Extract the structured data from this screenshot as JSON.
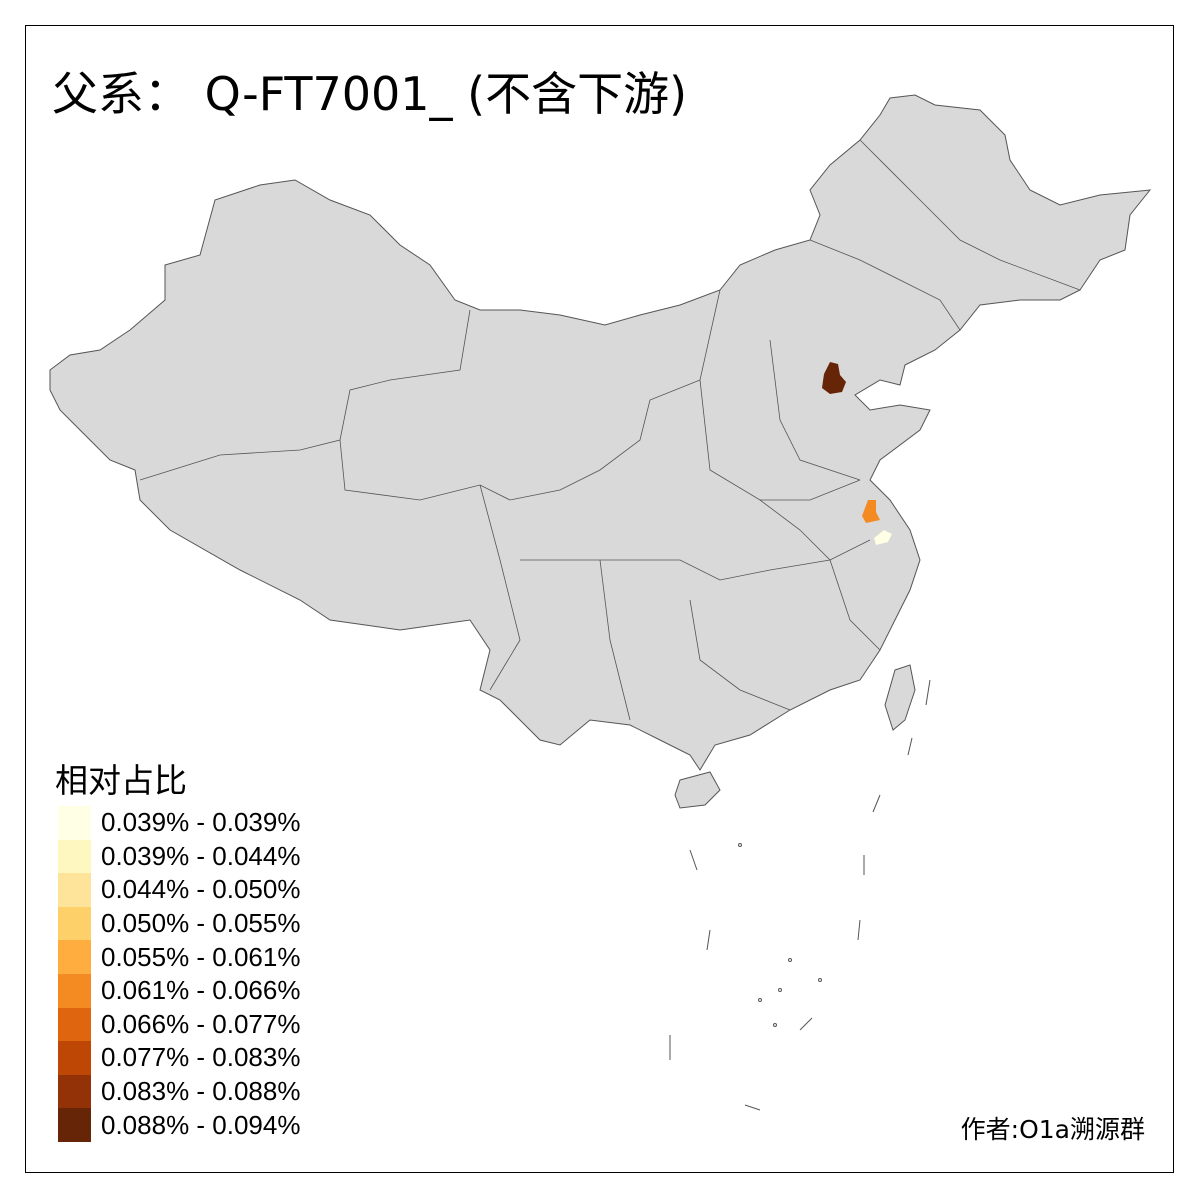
{
  "title": "父系： Q-FT7001_ (不含下游)",
  "legend": {
    "title": "相对占比",
    "items": [
      {
        "label": "0.039% - 0.039%",
        "color": "#FFFFE5"
      },
      {
        "label": "0.039% - 0.044%",
        "color": "#FFF7C0"
      },
      {
        "label": "0.044% - 0.050%",
        "color": "#FEE49A"
      },
      {
        "label": "0.050% - 0.055%",
        "color": "#FED06A"
      },
      {
        "label": "0.055% - 0.061%",
        "color": "#FEAD3E"
      },
      {
        "label": "0.061% - 0.066%",
        "color": "#F48A22"
      },
      {
        "label": "0.066% - 0.077%",
        "color": "#E0650F"
      },
      {
        "label": "0.077% - 0.083%",
        "color": "#BF4706"
      },
      {
        "label": "0.083% - 0.088%",
        "color": "#933206"
      },
      {
        "label": "0.088% - 0.094%",
        "color": "#662506"
      }
    ]
  },
  "map": {
    "base_color": "#D9D9D9",
    "border_color": "#555555",
    "highlighted_regions": [
      {
        "class": 9,
        "color": "#662506"
      },
      {
        "class": 5,
        "color": "#F48A22"
      },
      {
        "class": 0,
        "color": "#FFFFE5"
      }
    ]
  },
  "credit": "作者:O1a溯源群"
}
